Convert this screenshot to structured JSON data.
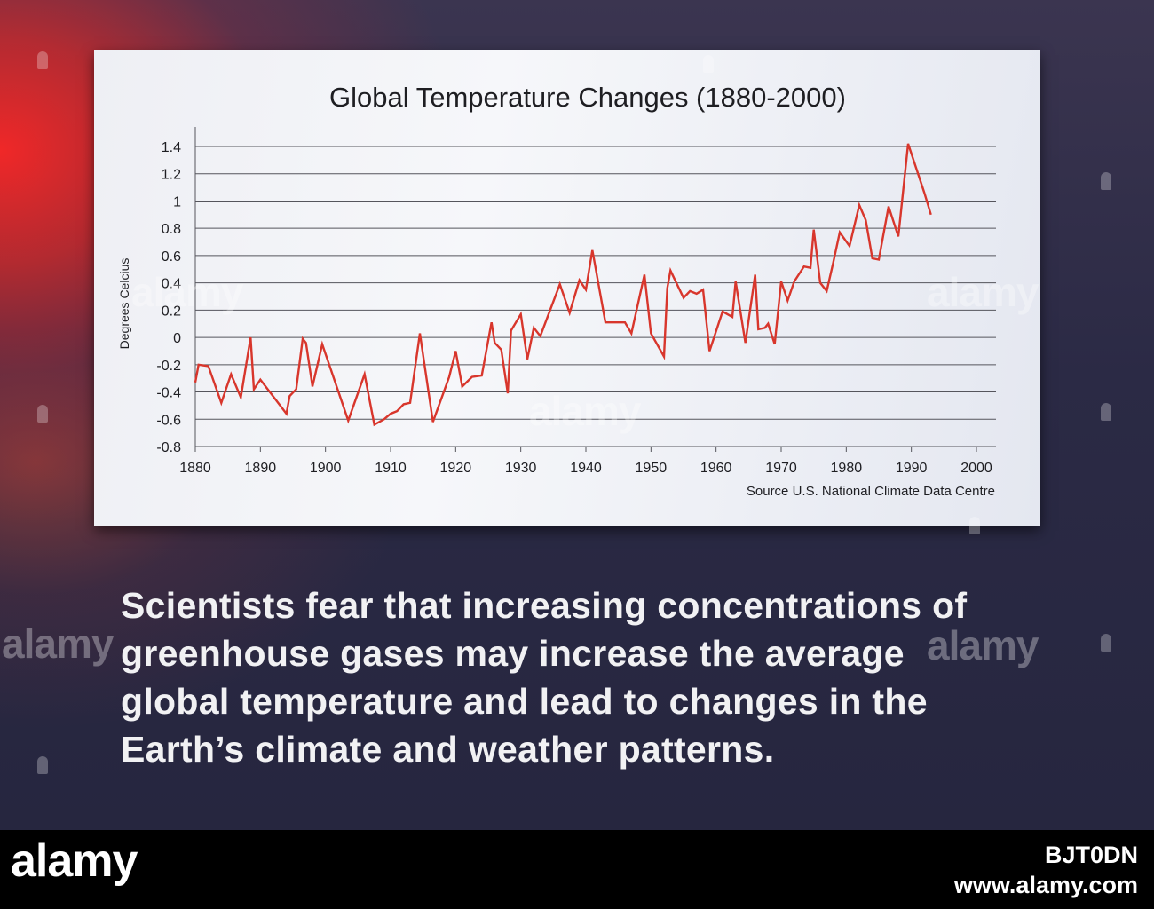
{
  "chart_data": {
    "type": "line",
    "title": "Global Temperature Changes (1880-2000)",
    "ylabel": "Degrees Celcius",
    "xlabel": "",
    "source": "Source U.S. National Climate Data Centre",
    "xlim": [
      1880,
      2003
    ],
    "ylim": [
      -0.8,
      1.4
    ],
    "yticks": [
      "1.4",
      "1.2",
      "1",
      "0.8",
      "0.6",
      "0.4",
      "0.2",
      "0",
      "-0.2",
      "-0.4",
      "-0.6",
      "-0.8"
    ],
    "ytick_values": [
      1.4,
      1.2,
      1.0,
      0.8,
      0.6,
      0.4,
      0.2,
      0.0,
      -0.2,
      -0.4,
      -0.6,
      -0.8
    ],
    "xticks": [
      "1880",
      "1890",
      "1900",
      "1910",
      "1920",
      "1930",
      "1940",
      "1950",
      "1960",
      "1970",
      "1980",
      "1990",
      "2000"
    ],
    "xtick_values": [
      1880,
      1890,
      1900,
      1910,
      1920,
      1930,
      1940,
      1950,
      1960,
      1970,
      1980,
      1990,
      2000
    ],
    "grid": true,
    "series": [
      {
        "color": "#d8362c",
        "points": [
          [
            1880,
            -0.33
          ],
          [
            1880.5,
            -0.2
          ],
          [
            1882,
            -0.21
          ],
          [
            1884,
            -0.48
          ],
          [
            1885.5,
            -0.27
          ],
          [
            1887,
            -0.44
          ],
          [
            1888.5,
            0.0
          ],
          [
            1889,
            -0.38
          ],
          [
            1890,
            -0.31
          ],
          [
            1894,
            -0.56
          ],
          [
            1894.5,
            -0.43
          ],
          [
            1895.5,
            -0.38
          ],
          [
            1896.5,
            -0.01
          ],
          [
            1897,
            -0.04
          ],
          [
            1898,
            -0.36
          ],
          [
            1899.5,
            -0.05
          ],
          [
            1903.5,
            -0.61
          ],
          [
            1906,
            -0.27
          ],
          [
            1907.5,
            -0.64
          ],
          [
            1909,
            -0.6
          ],
          [
            1910,
            -0.56
          ],
          [
            1911,
            -0.54
          ],
          [
            1912,
            -0.49
          ],
          [
            1913,
            -0.48
          ],
          [
            1914.5,
            0.03
          ],
          [
            1916.5,
            -0.62
          ],
          [
            1919,
            -0.29
          ],
          [
            1920,
            -0.1
          ],
          [
            1921,
            -0.36
          ],
          [
            1922.5,
            -0.29
          ],
          [
            1924,
            -0.28
          ],
          [
            1925.5,
            0.11
          ],
          [
            1926,
            -0.04
          ],
          [
            1927,
            -0.09
          ],
          [
            1928,
            -0.41
          ],
          [
            1928.5,
            0.05
          ],
          [
            1930,
            0.17
          ],
          [
            1931,
            -0.16
          ],
          [
            1932,
            0.07
          ],
          [
            1933,
            0.01
          ],
          [
            1936,
            0.39
          ],
          [
            1937.5,
            0.18
          ],
          [
            1939,
            0.42
          ],
          [
            1940,
            0.35
          ],
          [
            1941,
            0.64
          ],
          [
            1943,
            0.11
          ],
          [
            1946,
            0.11
          ],
          [
            1947,
            0.03
          ],
          [
            1949,
            0.46
          ],
          [
            1950,
            0.03
          ],
          [
            1952,
            -0.14
          ],
          [
            1952.5,
            0.36
          ],
          [
            1953,
            0.49
          ],
          [
            1955,
            0.29
          ],
          [
            1956,
            0.34
          ],
          [
            1957,
            0.32
          ],
          [
            1958,
            0.35
          ],
          [
            1959,
            -0.1
          ],
          [
            1961,
            0.19
          ],
          [
            1962.5,
            0.15
          ],
          [
            1963,
            0.41
          ],
          [
            1964.5,
            -0.04
          ],
          [
            1966,
            0.46
          ],
          [
            1966.5,
            0.06
          ],
          [
            1967.5,
            0.07
          ],
          [
            1968,
            0.1
          ],
          [
            1969,
            -0.05
          ],
          [
            1970,
            0.41
          ],
          [
            1971,
            0.27
          ],
          [
            1972,
            0.41
          ],
          [
            1973.5,
            0.52
          ],
          [
            1974.5,
            0.51
          ],
          [
            1975,
            0.79
          ],
          [
            1976,
            0.4
          ],
          [
            1977,
            0.34
          ],
          [
            1978,
            0.55
          ],
          [
            1979,
            0.77
          ],
          [
            1980.5,
            0.67
          ],
          [
            1982,
            0.97
          ],
          [
            1983,
            0.86
          ],
          [
            1984,
            0.58
          ],
          [
            1985,
            0.57
          ],
          [
            1986.5,
            0.96
          ],
          [
            1988,
            0.74
          ],
          [
            1989.5,
            1.42
          ],
          [
            1992,
            1.06
          ],
          [
            1993,
            0.9
          ]
        ]
      }
    ]
  },
  "caption": {
    "lines": [
      "Scientists fear that increasing concentrations of",
      "greenhouse gases may increase the average",
      "global temperature and lead to changes in the",
      "Earth’s climate and weather patterns."
    ]
  },
  "watermarks": {
    "logo": "alamy",
    "image_id": "BJT0DN",
    "url": "www.alamy.com"
  }
}
